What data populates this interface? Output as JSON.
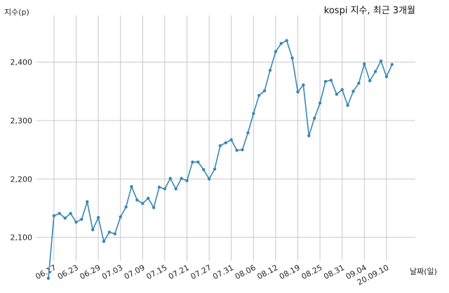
{
  "chart_data": {
    "type": "line",
    "title": "kospi 지수, 최근 3개월",
    "xlabel": "날짜(일)",
    "ylabel": "지수(p)",
    "ylim": [
      2060,
      2480
    ],
    "yticks": [
      2100,
      2200,
      2300,
      2400
    ],
    "ytick_labels": [
      "2,100",
      "2,200",
      "2,300",
      "2,400"
    ],
    "xtick_labels": [
      "06.17",
      "06.23",
      "06.29",
      "07.03",
      "07.09",
      "07.15",
      "07.21",
      "07.27",
      "07.31",
      "08.06",
      "08.12",
      "08.19",
      "08.25",
      "08.31",
      "09.04",
      "20.09.10"
    ],
    "grid": true,
    "line_color": "#3a86b4",
    "series": [
      {
        "name": "",
        "values": [
          2030,
          2137,
          2141,
          2133,
          2141,
          2126,
          2131,
          2161,
          2113,
          2134,
          2093,
          2109,
          2106,
          2135,
          2152,
          2187,
          2164,
          2158,
          2167,
          2151,
          2186,
          2183,
          2201,
          2183,
          2201,
          2197,
          2229,
          2229,
          2216,
          2200,
          2217,
          2257,
          2262,
          2267,
          2249,
          2250,
          2279,
          2312,
          2343,
          2351,
          2386,
          2418,
          2432,
          2437,
          2407,
          2349,
          2361,
          2274,
          2304,
          2330,
          2367,
          2369,
          2345,
          2353,
          2326,
          2350,
          2364,
          2397,
          2368,
          2384,
          2402,
          2375,
          2396
        ]
      }
    ]
  }
}
